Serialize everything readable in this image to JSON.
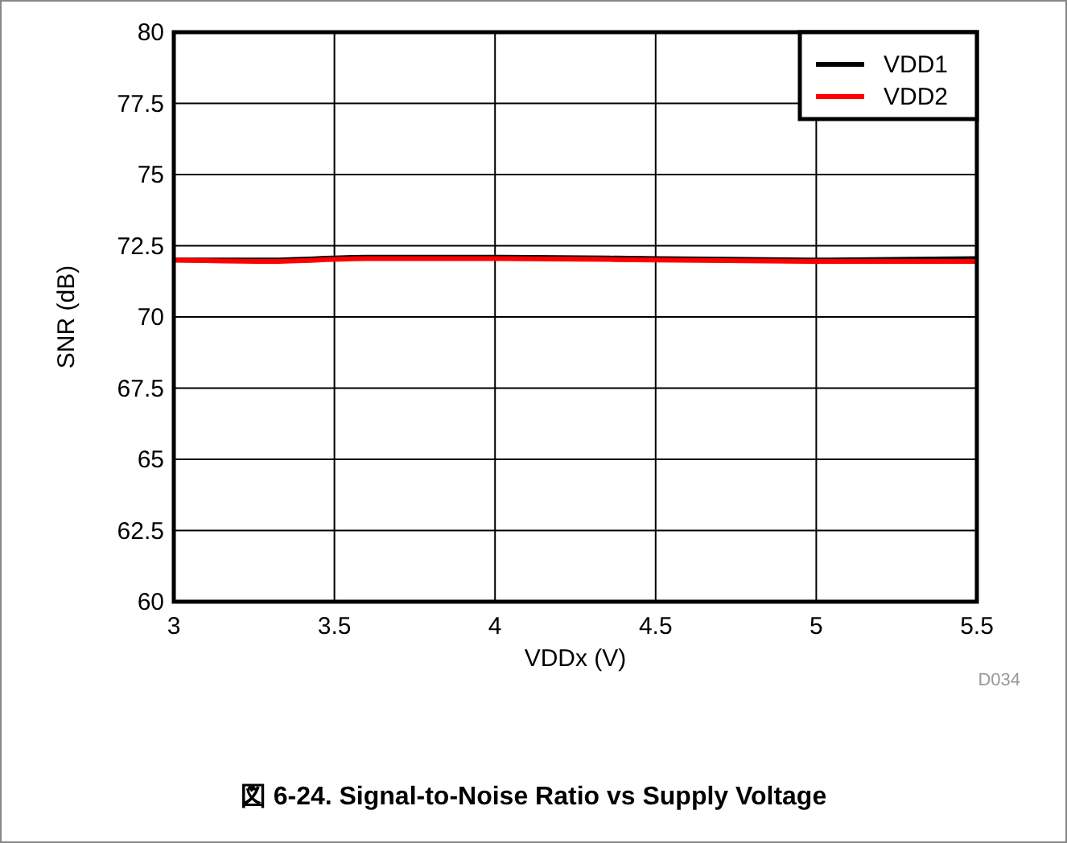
{
  "chart_data": {
    "type": "line",
    "title": "図 6-24. Signal-to-Noise Ratio vs Supply Voltage",
    "xlabel": "VDDx (V)",
    "ylabel": "SNR (dB)",
    "annotations": [
      "D034"
    ],
    "x": [
      3,
      3.3,
      3.6,
      4,
      4.5,
      5,
      5.5
    ],
    "series": [
      {
        "name": "VDD1",
        "color": "#000000",
        "values": [
          72.0,
          72.0,
          72.1,
          72.1,
          72.05,
          72.0,
          72.05
        ]
      },
      {
        "name": "VDD2",
        "color": "#ff0000",
        "values": [
          72.0,
          71.95,
          72.05,
          72.05,
          72.0,
          71.95,
          71.95
        ]
      }
    ],
    "xlim": [
      3,
      5.5
    ],
    "xticks": [
      3,
      3.5,
      4,
      4.5,
      5,
      5.5
    ],
    "ylim": [
      60,
      80
    ],
    "yticks": [
      60,
      62.5,
      65,
      67.5,
      70,
      72.5,
      75,
      77.5,
      80
    ],
    "grid": true,
    "legend": "top right"
  }
}
